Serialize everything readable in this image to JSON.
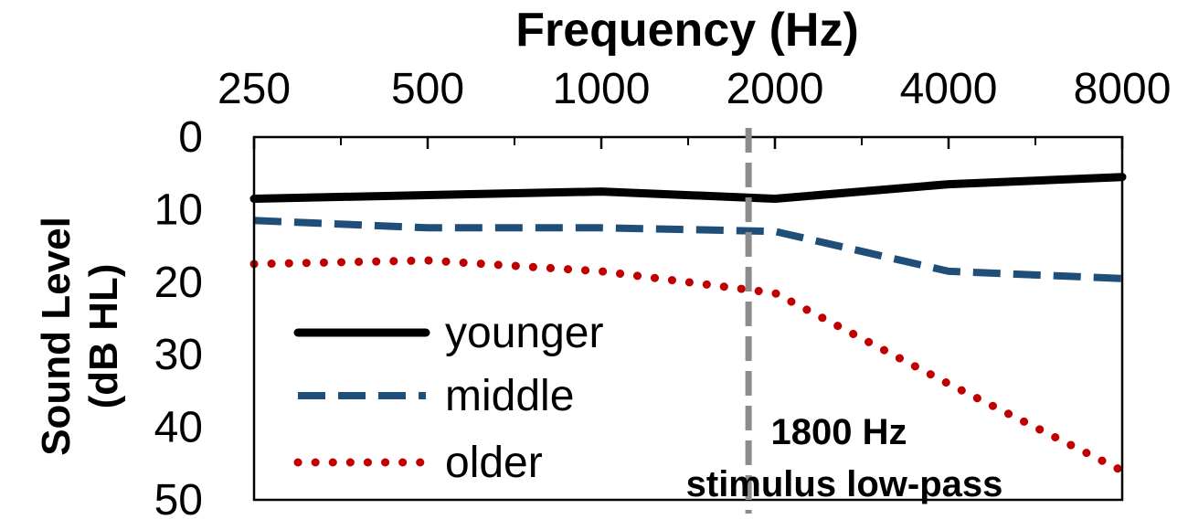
{
  "chart_data": {
    "type": "line",
    "xlabel": "Frequency (Hz)",
    "ylabel_line1": "Sound Level",
    "ylabel_line2": "(dB HL)",
    "x": [
      250,
      500,
      1000,
      2000,
      4000,
      8000
    ],
    "x_tick_labels": [
      "250",
      "500",
      "1000",
      "2000",
      "4000",
      "8000"
    ],
    "x_scale": "log2",
    "x_axis_position": "top",
    "ylim": [
      0,
      50
    ],
    "y_inverted": true,
    "y_ticks": [
      0,
      10,
      20,
      30,
      40,
      50
    ],
    "y_tick_labels": [
      "0",
      "10",
      "20",
      "30",
      "40",
      "50"
    ],
    "grid": false,
    "legend_position": "bottom-left",
    "series": [
      {
        "name": "younger",
        "values": [
          8.5,
          8.0,
          7.5,
          8.5,
          6.5,
          5.5
        ],
        "color": "#000000",
        "style": "solid"
      },
      {
        "name": "middle",
        "values": [
          11.5,
          12.5,
          12.5,
          13.0,
          18.5,
          19.5
        ],
        "color": "#1f4e79",
        "style": "dashed"
      },
      {
        "name": "older",
        "values": [
          17.5,
          17.0,
          18.5,
          21.5,
          34.0,
          46.0
        ],
        "color": "#c00000",
        "style": "dotted"
      }
    ],
    "annotation": {
      "x": 1800,
      "line1": "1800 Hz",
      "line2": "stimulus low-pass",
      "line_color": "#8c8c8c",
      "line_style": "dashed"
    }
  }
}
